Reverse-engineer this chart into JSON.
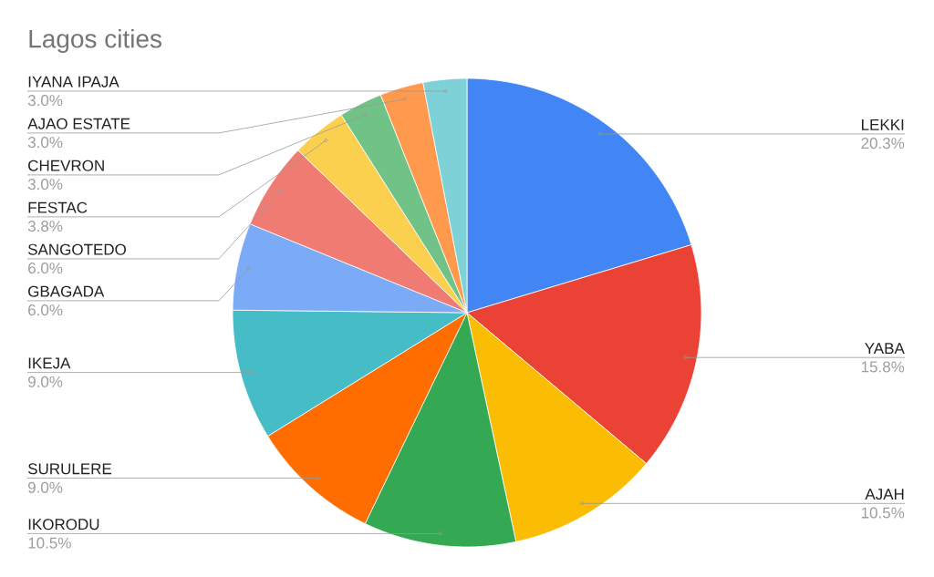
{
  "chart_data": {
    "type": "pie",
    "title": "Lagos cities",
    "categories": [
      "LEKKI",
      "YABA",
      "AJAH",
      "IKORODU",
      "SURULERE",
      "IKEJA",
      "GBAGADA",
      "SANGOTEDO",
      "FESTAC",
      "CHEVRON",
      "AJAO ESTATE",
      "IYANA IPAJA"
    ],
    "values": [
      20.3,
      15.8,
      10.5,
      10.5,
      9.0,
      9.0,
      6.0,
      6.0,
      3.8,
      3.0,
      3.0,
      3.0
    ],
    "colors": [
      "#4285f4",
      "#ea4335",
      "#fbbc04",
      "#34a853",
      "#ff6d01",
      "#46bdc6",
      "#7baaf7",
      "#f07b72",
      "#fcd04f",
      "#71c287",
      "#ff994d",
      "#7ed1d7"
    ],
    "value_labels": [
      "20.3%",
      "15.8%",
      "10.5%",
      "10.5%",
      "9.0%",
      "9.0%",
      "6.0%",
      "6.0%",
      "3.8%",
      "3.0%",
      "3.0%",
      "3.0%"
    ]
  }
}
